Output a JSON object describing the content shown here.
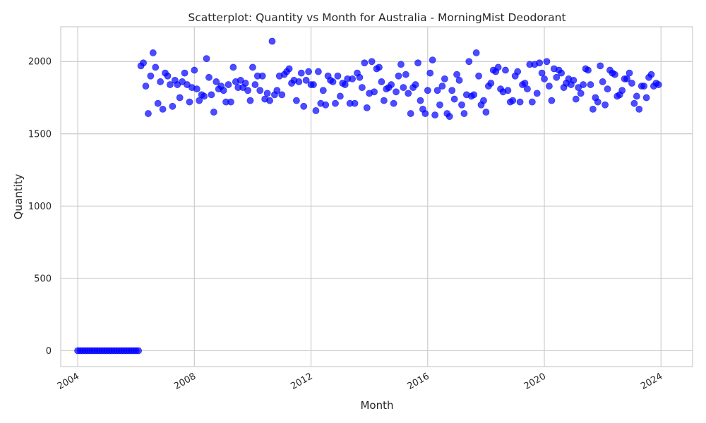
{
  "chart_data": {
    "type": "scatter",
    "title": "Scatterplot: Quantity vs Month for Australia - MorningMist Deodorant",
    "xlabel": "Month",
    "ylabel": "Quantity",
    "x_ticks": [
      "2004",
      "2008",
      "2012",
      "2016",
      "2020",
      "2024"
    ],
    "y_ticks": [
      0,
      500,
      1000,
      1500,
      2000
    ],
    "xlim": [
      "2003-06",
      "2025-02"
    ],
    "ylim": [
      -110,
      2240
    ],
    "grid": true,
    "legend": "none",
    "marker_color": "#0000ff",
    "marker_opacity": 0.7,
    "x_start": "2004-01",
    "y": [
      0,
      0,
      0,
      0,
      0,
      0,
      0,
      0,
      0,
      0,
      0,
      0,
      0,
      0,
      0,
      0,
      0,
      0,
      0,
      0,
      0,
      0,
      0,
      0,
      0,
      0,
      1970,
      1990,
      1830,
      1640,
      1900,
      2060,
      1960,
      1710,
      1860,
      1670,
      1920,
      1900,
      1840,
      1690,
      1870,
      1840,
      1750,
      1860,
      1920,
      1840,
      1720,
      1820,
      1940,
      1810,
      1730,
      1770,
      1760,
      2020,
      1890,
      1770,
      1650,
      1860,
      1810,
      1830,
      1800,
      1720,
      1840,
      1720,
      1960,
      1860,
      1820,
      1870,
      1820,
      1850,
      1800,
      1730,
      1960,
      1840,
      1900,
      1800,
      1900,
      1740,
      1780,
      1730,
      2140,
      1770,
      1800,
      1900,
      1770,
      1910,
      1930,
      1950,
      1850,
      1870,
      1730,
      1860,
      1920,
      1690,
      1870,
      1930,
      1840,
      1840,
      1660,
      1930,
      1710,
      1800,
      1700,
      1900,
      1870,
      1860,
      1710,
      1900,
      1760,
      1850,
      1840,
      1880,
      1710,
      1880,
      1710,
      1920,
      1890,
      1820,
      1990,
      1680,
      1780,
      2000,
      1790,
      1950,
      1960,
      1860,
      1730,
      1810,
      1820,
      1840,
      1710,
      1790,
      1900,
      1980,
      1820,
      1910,
      1780,
      1640,
      1820,
      1840,
      1990,
      1730,
      1670,
      1640,
      1800,
      1920,
      2010,
      1630,
      1800,
      1700,
      1830,
      1880,
      1640,
      1620,
      1800,
      1740,
      1910,
      1870,
      1700,
      1640,
      1770,
      2000,
      1760,
      1770,
      2060,
      1900,
      1700,
      1730,
      1650,
      1830,
      1850,
      1940,
      1930,
      1960,
      1810,
      1790,
      1940,
      1800,
      1720,
      1730,
      1900,
      1930,
      1720,
      1840,
      1850,
      1810,
      1980,
      1720,
      1980,
      1780,
      1990,
      1920,
      1880,
      2000,
      1830,
      1730,
      1950,
      1890,
      1940,
      1920,
      1820,
      1850,
      1880,
      1840,
      1870,
      1740,
      1820,
      1780,
      1840,
      1950,
      1940,
      1840,
      1670,
      1750,
      1720,
      1970,
      1860,
      1700,
      1810,
      1940,
      1920,
      1910,
      1760,
      1770,
      1800,
      1880,
      1880,
      1920,
      1850,
      1710,
      1760,
      1670,
      1830,
      1830,
      1750,
      1890,
      1910,
      1830,
      1850,
      1840
    ]
  }
}
